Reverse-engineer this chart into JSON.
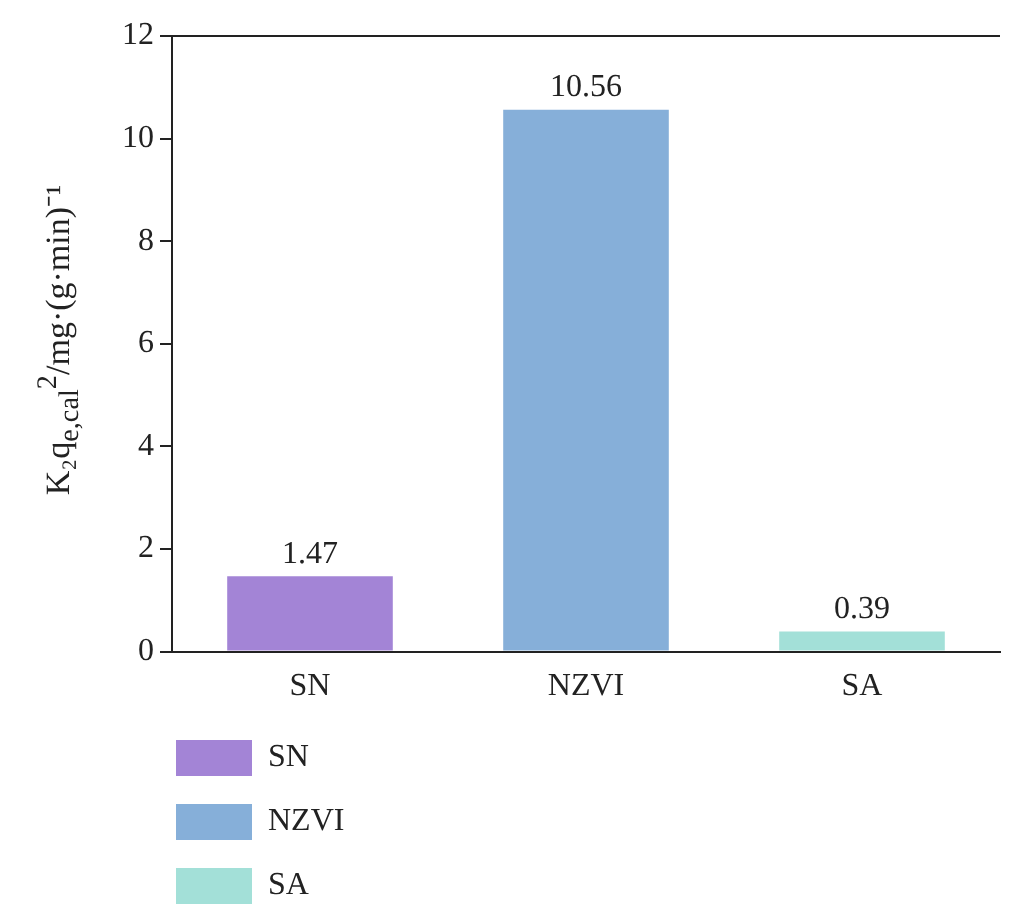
{
  "chart_data": {
    "type": "bar",
    "ylabel": "K₂q$_{e,cal}$$^{2}$/mg·(g·min)⁻¹",
    "categories": [
      "SN",
      "NZVI",
      "SA"
    ],
    "series": [
      {
        "name": "SN",
        "color": "#a384d6",
        "values": [
          1.47,
          null,
          null
        ]
      },
      {
        "name": "NZVI",
        "color": "#86afd9",
        "values": [
          null,
          10.56,
          null
        ]
      },
      {
        "name": "SA",
        "color": "#a3e0d8",
        "values": [
          null,
          null,
          0.39
        ]
      }
    ],
    "ylim": [
      0,
      12
    ],
    "yticks": [
      0,
      2,
      4,
      6,
      8,
      10,
      12
    ],
    "data_labels": true,
    "grid": false,
    "legend": "bottom left"
  }
}
